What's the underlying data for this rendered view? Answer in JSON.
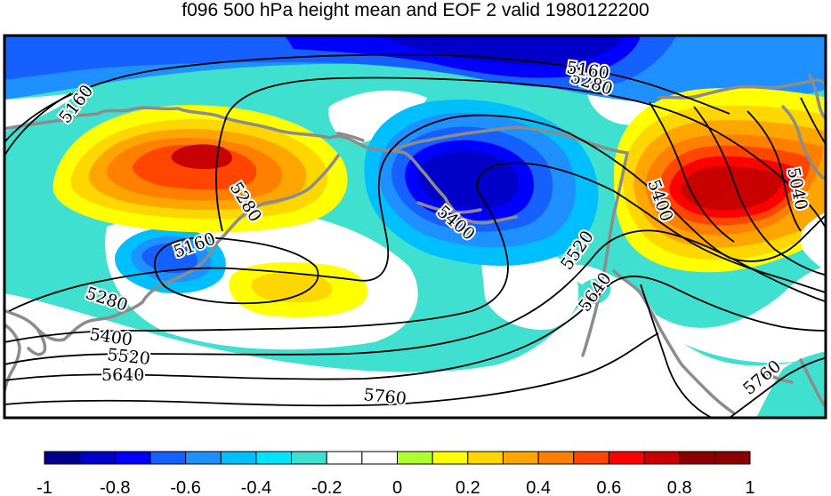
{
  "title": "f096 500 hPa height mean and EOF 2 valid 1980122200",
  "contour_labels": [
    "5160",
    "5280",
    "5160",
    "5280",
    "5400",
    "5160",
    "5280",
    "5400",
    "5520",
    "5640",
    "5760",
    "5400",
    "5520",
    "5640",
    "5040",
    "5760"
  ],
  "colorbar": {
    "ticks": [
      "-1",
      "-0.8",
      "-0.6",
      "-0.4",
      "-0.2",
      "0",
      "0.2",
      "0.4",
      "0.6",
      "0.8",
      "1"
    ],
    "colors": [
      "#00008b",
      "#0000c8",
      "#0000ff",
      "#1560ff",
      "#1e90ff",
      "#00bfff",
      "#00e5ff",
      "#40e0d0",
      "#ffffff",
      "#ffffff",
      "#adff2f",
      "#ffff00",
      "#ffd700",
      "#ffa500",
      "#ff7f00",
      "#ff4500",
      "#ff0000",
      "#c80000",
      "#8b0000",
      "#8b0000"
    ]
  },
  "palette": {
    "coast": "#8c8c8c",
    "contour": "#000000",
    "frame": "#000000"
  }
}
